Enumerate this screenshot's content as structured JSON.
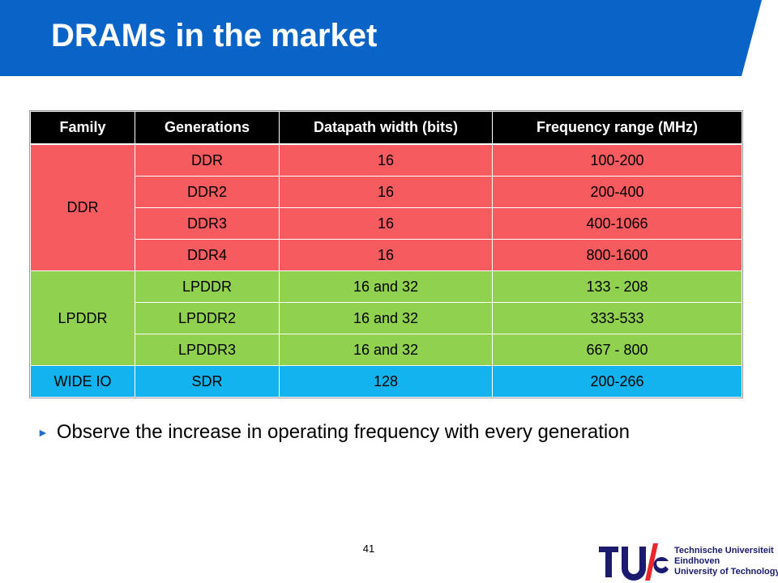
{
  "slide": {
    "title": "DRAMs in the market",
    "page_number": "41"
  },
  "colors": {
    "header": "#0a64c8",
    "ddr": "#f65c5f",
    "lpddr": "#90d150",
    "wide_io": "#12b3ef",
    "table_header": "#000000",
    "bullet_marker": "#1a6fce"
  },
  "table": {
    "headers": [
      "Family",
      "Generations",
      "Datapath width (bits)",
      "Frequency range (MHz)"
    ],
    "families": [
      {
        "name": "DDR",
        "rows": [
          {
            "generation": "DDR",
            "width": "16",
            "frequency": "100-200"
          },
          {
            "generation": "DDR2",
            "width": "16",
            "frequency": "200-400"
          },
          {
            "generation": "DDR3",
            "width": "16",
            "frequency": "400-1066"
          },
          {
            "generation": "DDR4",
            "width": "16",
            "frequency": "800-1600"
          }
        ]
      },
      {
        "name": "LPDDR",
        "rows": [
          {
            "generation": "LPDDR",
            "width": "16 and 32",
            "frequency": "133 - 208"
          },
          {
            "generation": "LPDDR2",
            "width": "16 and 32",
            "frequency": "333-533"
          },
          {
            "generation": "LPDDR3",
            "width": "16 and 32",
            "frequency": "667 - 800"
          }
        ]
      },
      {
        "name": "WIDE IO",
        "rows": [
          {
            "generation": "SDR",
            "width": "128",
            "frequency": "200-266"
          }
        ]
      }
    ]
  },
  "bullets": [
    {
      "marker": "►",
      "text": "Observe the increase in operating frequency with every generation"
    }
  ],
  "logo": {
    "mark": "TU/e",
    "lines": [
      "Technische Universiteit",
      "Eindhoven",
      "University of Technology"
    ]
  }
}
